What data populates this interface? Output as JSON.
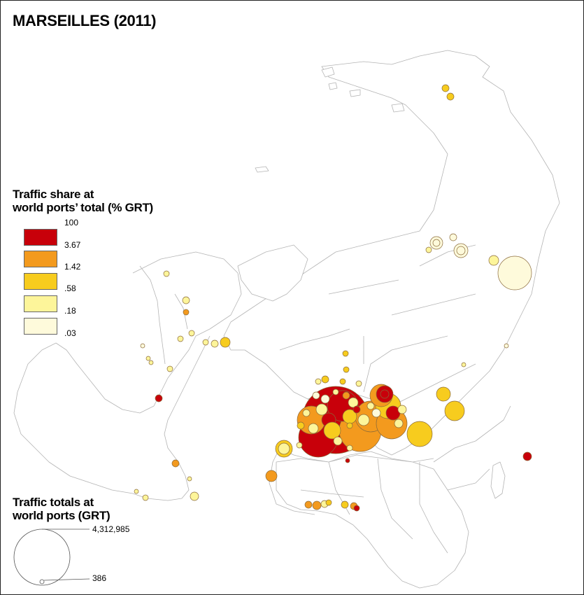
{
  "title": "MARSEILLES (2011)",
  "share_legend": {
    "title_line1": "Traffic share at",
    "title_line2": "world ports’ total (% GRT)",
    "classes": [
      {
        "label": "100",
        "color": "#c8000a"
      },
      {
        "label": "3.67",
        "color": "#f39a1e"
      },
      {
        "label": "1.42",
        "color": "#f7cc1e"
      },
      {
        "label": ".58",
        "color": "#fdf59a"
      },
      {
        "label": ".18",
        "color": "#fefadb"
      },
      {
        "label": ".03",
        "color": ""
      }
    ]
  },
  "size_legend": {
    "title_line1": "Traffic totals at",
    "title_line2": "world ports (GRT)",
    "max_value": "4,312,985",
    "min_value": "386"
  },
  "map": {
    "stroke_color": "#b4b4b4",
    "circle_outline": "#8a6a3a"
  }
}
